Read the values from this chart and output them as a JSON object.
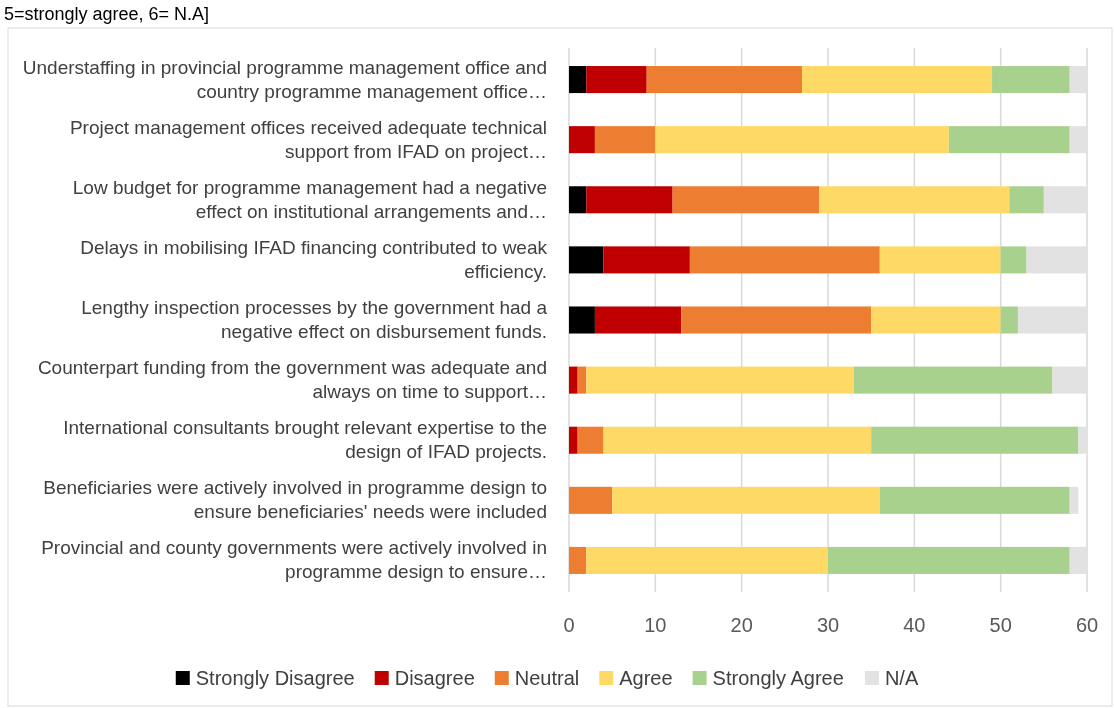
{
  "chart_data": {
    "type": "bar",
    "orientation": "horizontal",
    "stacked": true,
    "title": "5=strongly agree, 6= N.A]",
    "categories": [
      "Understaffing in provincial programme management office and country programme management office…",
      "Project management offices received adequate technical support from IFAD on project…",
      "Low budget for programme management had a negative effect on institutional arrangements and…",
      "Delays in mobilising IFAD financing contributed to weak efficiency.",
      "Lengthy inspection processes by the government had a negative effect on disbursement funds.",
      "Counterpart funding from the government was adequate and always on time to support…",
      "International consultants brought relevant expertise to the design of IFAD projects.",
      "Beneficiaries were actively involved in programme design to ensure beneficiaries' needs were included",
      "Provincial and county governments were actively involved in programme design to ensure…"
    ],
    "series": [
      {
        "name": "Strongly Disagree",
        "color": "#000000",
        "values": [
          2,
          0,
          2,
          4,
          3,
          0,
          0,
          0,
          0
        ]
      },
      {
        "name": "Disagree",
        "color": "#c00000",
        "values": [
          7,
          3,
          10,
          10,
          10,
          1,
          1,
          0,
          0
        ]
      },
      {
        "name": "Neutral",
        "color": "#ed7d31",
        "values": [
          18,
          7,
          17,
          22,
          22,
          1,
          3,
          5,
          2
        ]
      },
      {
        "name": "Agree",
        "color": "#ffd966",
        "values": [
          22,
          34,
          22,
          14,
          15,
          31,
          31,
          31,
          28
        ]
      },
      {
        "name": "Strongly Agree",
        "color": "#a9d18e",
        "values": [
          9,
          14,
          4,
          3,
          2,
          23,
          24,
          22,
          28
        ]
      },
      {
        "name": "N/A",
        "color": "#e2e2e2",
        "values": [
          2,
          2,
          5,
          7,
          8,
          4,
          1,
          1,
          2
        ]
      }
    ],
    "xlim": [
      0,
      60
    ],
    "xticks": [
      0,
      10,
      20,
      30,
      40,
      50,
      60
    ],
    "grid": "x",
    "legend": "bottom"
  }
}
